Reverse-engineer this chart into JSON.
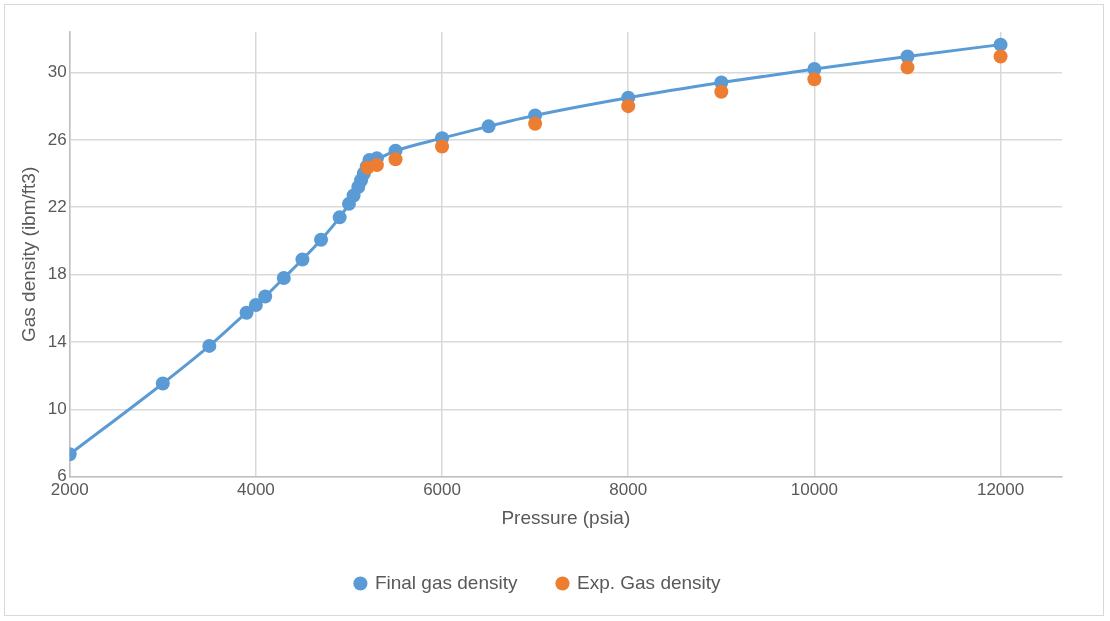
{
  "chart_data": {
    "type": "line",
    "xlabel": "Pressure (psia)",
    "ylabel": "Gas density (ibm/ft3)",
    "xlim": [
      2000,
      12660
    ],
    "xticks": [
      2000,
      4000,
      6000,
      8000,
      10000,
      12000
    ],
    "ylim": [
      6,
      32.4
    ],
    "yticks": [
      6,
      10,
      14,
      18,
      22,
      26,
      30
    ],
    "grid": true,
    "legend": "bottom",
    "marker": "circle",
    "line_style": "solid",
    "series": [
      {
        "name": "Final gas density",
        "color": "#5b9bd5",
        "x": [
          2000,
          3000,
          3500,
          3900,
          4000,
          4100,
          4300,
          4500,
          4700,
          4900,
          5000,
          5050,
          5100,
          5130,
          5160,
          5190,
          5220,
          5300,
          5500,
          6000,
          6500,
          7000,
          8000,
          9000,
          10000,
          11000,
          12000
        ],
        "values": [
          7.34,
          11.54,
          13.77,
          15.74,
          16.2,
          16.7,
          17.8,
          18.9,
          20.07,
          21.4,
          22.2,
          22.7,
          23.2,
          23.6,
          24.0,
          24.4,
          24.8,
          24.9,
          25.35,
          26.1,
          26.8,
          27.45,
          28.5,
          29.4,
          30.2,
          30.95,
          31.65
        ]
      },
      {
        "name": "Exp. Gas density",
        "type": "scatter",
        "color": "#ed7d31",
        "x": [
          5200,
          5300,
          5500,
          6000,
          7000,
          8000,
          9000,
          10000,
          11000,
          12000
        ],
        "values": [
          24.35,
          24.5,
          24.85,
          25.6,
          26.95,
          28.0,
          28.85,
          29.6,
          30.3,
          30.95
        ]
      }
    ]
  }
}
